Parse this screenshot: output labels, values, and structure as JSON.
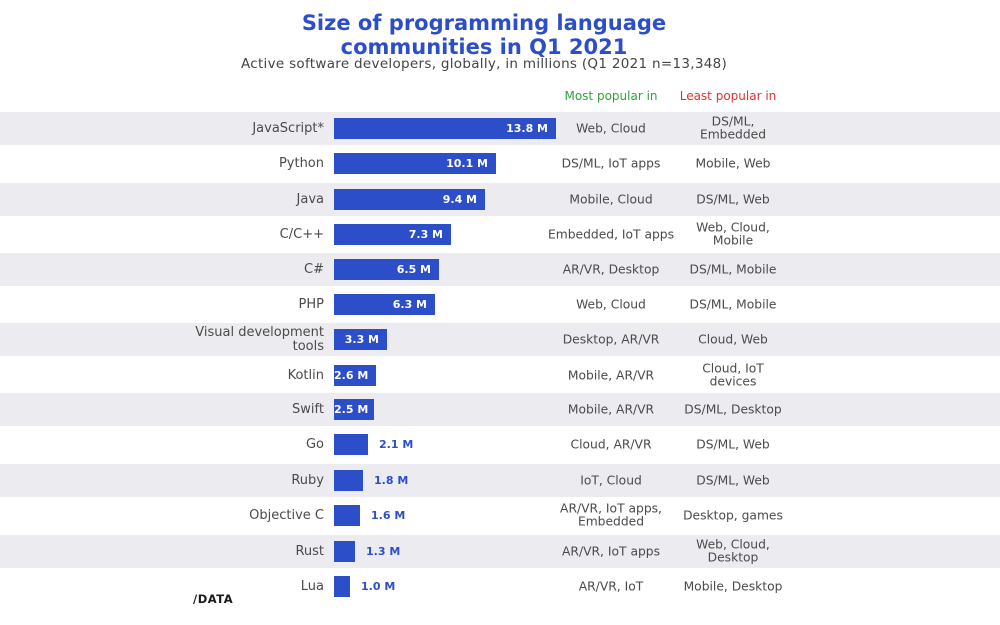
{
  "chart_data": {
    "type": "bar",
    "title_line1": "Size of programming language",
    "title_line2": "communities in Q1 2021",
    "subtitle": "Active software developers, globally, in millions (Q1 2021 n=13,348)",
    "column_headers": {
      "most": "Most popular in",
      "least": "Least popular in"
    },
    "colors": {
      "bar": "#2d4ec9",
      "title": "#2d4ec9",
      "most": "#2ca33a",
      "least": "#e03131",
      "band": "#ececf0"
    },
    "xlim": [
      0,
      13.8
    ],
    "rows": [
      {
        "lang": "JavaScript*",
        "value": 13.8,
        "label": "13.8 M",
        "most": "Web, Cloud",
        "least": "DS/ML,\nEmbedded"
      },
      {
        "lang": "Python",
        "value": 10.1,
        "label": "10.1 M",
        "most": "DS/ML, IoT apps",
        "least": "Mobile, Web"
      },
      {
        "lang": "Java",
        "value": 9.4,
        "label": "9.4 M",
        "most": "Mobile, Cloud",
        "least": "DS/ML, Web"
      },
      {
        "lang": "C/C++",
        "value": 7.3,
        "label": "7.3 M",
        "most": "Embedded, IoT apps",
        "least": "Web, Cloud,\nMobile"
      },
      {
        "lang": "C#",
        "value": 6.5,
        "label": "6.5 M",
        "most": "AR/VR, Desktop",
        "least": "DS/ML, Mobile"
      },
      {
        "lang": "PHP",
        "value": 6.3,
        "label": "6.3 M",
        "most": "Web, Cloud",
        "least": "DS/ML, Mobile"
      },
      {
        "lang": "Visual development\ntools",
        "value": 3.3,
        "label": "3.3 M",
        "most": "Desktop, AR/VR",
        "least": "Cloud, Web"
      },
      {
        "lang": "Kotlin",
        "value": 2.6,
        "label": "2.6 M",
        "most": "Mobile, AR/VR",
        "least": "Cloud, IoT\ndevices"
      },
      {
        "lang": "Swift",
        "value": 2.5,
        "label": "2.5 M",
        "most": "Mobile, AR/VR",
        "least": "DS/ML, Desktop"
      },
      {
        "lang": "Go",
        "value": 2.1,
        "label": "2.1 M",
        "most": "Cloud, AR/VR",
        "least": "DS/ML, Web"
      },
      {
        "lang": "Ruby",
        "value": 1.8,
        "label": "1.8 M",
        "most": "IoT, Cloud",
        "least": "DS/ML, Web"
      },
      {
        "lang": "Objective C",
        "value": 1.6,
        "label": "1.6 M",
        "most": "AR/VR, IoT apps,\nEmbedded",
        "least": "Desktop, games"
      },
      {
        "lang": "Rust",
        "value": 1.3,
        "label": "1.3 M",
        "most": "AR/VR, IoT apps",
        "least": "Web, Cloud,\nDesktop"
      },
      {
        "lang": "Lua",
        "value": 1.0,
        "label": "1.0 M",
        "most": "AR/VR, IoT",
        "least": "Mobile, Desktop"
      }
    ]
  },
  "footer": {
    "logo": "/DATA"
  }
}
